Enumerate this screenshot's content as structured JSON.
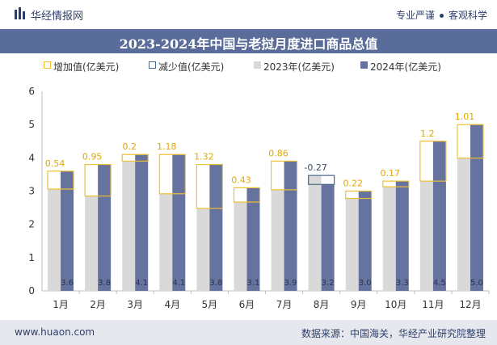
{
  "header": {
    "brand": "华经情报网",
    "tagline_left": "专业严谨",
    "tagline_right": "客观科学"
  },
  "footer": {
    "site": "www.huaon.com",
    "source": "数据来源：中国海关，华经产业研究院整理"
  },
  "colors": {
    "increase": "#f0c030",
    "decrease": "#4a6a8a",
    "y2023": "#d9d9d9",
    "y2024": "#65739e",
    "header_bg": "#5a6c99"
  },
  "chart_data": {
    "type": "bar",
    "title": "2023-2024年中国与老挝月度进口商品总值",
    "categories": [
      "1月",
      "2月",
      "3月",
      "4月",
      "5月",
      "6月",
      "7月",
      "8月",
      "9月",
      "10月",
      "11月",
      "12月"
    ],
    "series": [
      {
        "name": "2023年(亿美元)",
        "values": [
          3.06,
          2.85,
          3.9,
          2.92,
          2.48,
          2.67,
          3.04,
          3.47,
          2.78,
          3.13,
          3.3,
          3.99
        ]
      },
      {
        "name": "2024年(亿美元)",
        "values": [
          3.6,
          3.8,
          4.1,
          4.1,
          3.8,
          3.1,
          3.9,
          3.2,
          3.0,
          3.3,
          4.5,
          5.0
        ]
      }
    ],
    "changes": [
      0.54,
      0.95,
      0.2,
      1.18,
      1.32,
      0.43,
      0.86,
      -0.27,
      0.22,
      0.17,
      1.2,
      1.01
    ],
    "change_labels": [
      "0.54",
      "0.95",
      "0.2",
      "1.18",
      "1.32",
      "0.43",
      "0.86",
      "-0.27",
      "0.22",
      "0.17",
      "1.2",
      "1.01"
    ],
    "value_labels_2024": [
      "3.6",
      "3.8",
      "4.1",
      "4.1",
      "3.8",
      "3.1",
      "3.9",
      "3.2",
      "3.0",
      "3.3",
      "4.5",
      "5.0"
    ],
    "legend": [
      "增加值(亿美元)",
      "减少值(亿美元)",
      "2023年(亿美元)",
      "2024年(亿美元)"
    ],
    "ylim": [
      0,
      6
    ],
    "yticks": [
      "0",
      "1",
      "2",
      "3",
      "4",
      "5",
      "6"
    ],
    "xlabel": "",
    "ylabel": ""
  }
}
